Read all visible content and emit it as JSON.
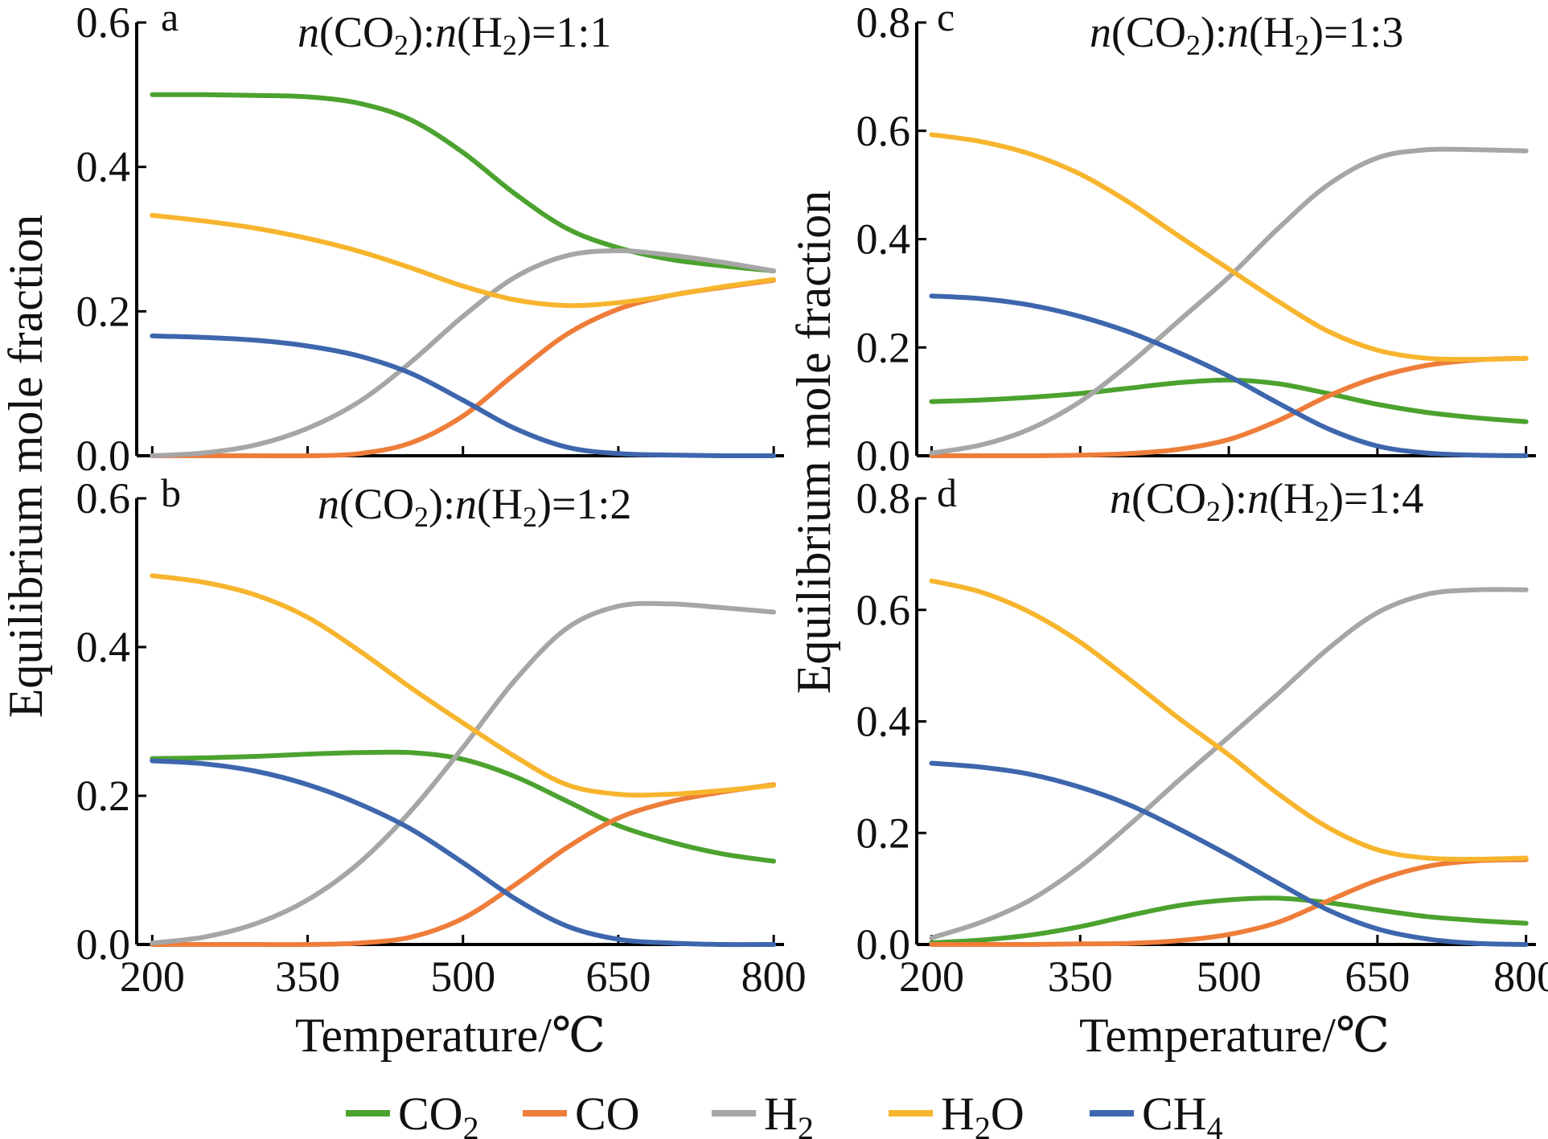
{
  "figure": {
    "ylabel": "Equilibrium mole fraction",
    "xlabel": "Temperature/℃"
  },
  "chart_data": [
    {
      "type": "line",
      "panel": "a",
      "ratio": {
        "a": "n",
        "b": "(CO",
        "c": "2",
        "d": "):",
        "e": "n",
        "f": "(H",
        "g": "2",
        "h": ")=1:1"
      },
      "x": [
        200,
        250,
        300,
        350,
        400,
        450,
        500,
        550,
        600,
        650,
        700,
        750,
        800
      ],
      "xlim": [
        185,
        810
      ],
      "xticks": [
        200,
        350,
        500,
        650,
        800
      ],
      "ylim": [
        0,
        0.6
      ],
      "yticks": [
        "0.0",
        "0.2",
        "0.4",
        "0.6"
      ],
      "series": [
        {
          "key": "CO2",
          "values": [
            0.5,
            0.5,
            0.499,
            0.497,
            0.488,
            0.465,
            0.42,
            0.363,
            0.315,
            0.288,
            0.272,
            0.263,
            0.256
          ]
        },
        {
          "key": "CO",
          "values": [
            0.0,
            0.0,
            0.0,
            0.0,
            0.003,
            0.018,
            0.055,
            0.113,
            0.168,
            0.203,
            0.222,
            0.233,
            0.243
          ]
        },
        {
          "key": "H2",
          "values": [
            0.0,
            0.004,
            0.015,
            0.038,
            0.075,
            0.13,
            0.193,
            0.247,
            0.277,
            0.284,
            0.278,
            0.268,
            0.256
          ]
        },
        {
          "key": "H2O",
          "values": [
            0.333,
            0.325,
            0.315,
            0.301,
            0.283,
            0.26,
            0.235,
            0.216,
            0.208,
            0.212,
            0.222,
            0.234,
            0.244
          ]
        },
        {
          "key": "CH4",
          "values": [
            0.166,
            0.164,
            0.16,
            0.152,
            0.138,
            0.114,
            0.077,
            0.038,
            0.012,
            0.003,
            0.001,
            0.0,
            0.0
          ]
        }
      ]
    },
    {
      "type": "line",
      "panel": "b",
      "ratio": {
        "a": "n",
        "b": "(CO",
        "c": "2",
        "d": "):",
        "e": "n",
        "f": "(H",
        "g": "2",
        "h": ")=1:2"
      },
      "x": [
        200,
        250,
        300,
        350,
        400,
        450,
        500,
        550,
        600,
        650,
        700,
        750,
        800
      ],
      "xlim": [
        185,
        810
      ],
      "xticks": [
        200,
        350,
        500,
        650,
        800
      ],
      "ylim": [
        0,
        0.6
      ],
      "yticks": [
        "0.0",
        "0.2",
        "0.4",
        "0.6"
      ],
      "series": [
        {
          "key": "CO2",
          "values": [
            0.25,
            0.251,
            0.253,
            0.256,
            0.258,
            0.258,
            0.249,
            0.226,
            0.193,
            0.16,
            0.138,
            0.122,
            0.112
          ]
        },
        {
          "key": "CO",
          "values": [
            0.0,
            0.0,
            0.0,
            0.0,
            0.002,
            0.01,
            0.035,
            0.08,
            0.13,
            0.17,
            0.192,
            0.205,
            0.215
          ]
        },
        {
          "key": "H2",
          "values": [
            0.002,
            0.01,
            0.028,
            0.06,
            0.11,
            0.18,
            0.265,
            0.355,
            0.425,
            0.455,
            0.458,
            0.453,
            0.447
          ]
        },
        {
          "key": "H2O",
          "values": [
            0.496,
            0.487,
            0.47,
            0.44,
            0.395,
            0.345,
            0.298,
            0.253,
            0.215,
            0.202,
            0.202,
            0.207,
            0.214
          ]
        },
        {
          "key": "CH4",
          "values": [
            0.247,
            0.243,
            0.233,
            0.215,
            0.189,
            0.155,
            0.11,
            0.062,
            0.025,
            0.007,
            0.002,
            0.0,
            0.0
          ]
        }
      ]
    },
    {
      "type": "line",
      "panel": "c",
      "ratio": {
        "a": "n",
        "b": "(CO",
        "c": "2",
        "d": "):",
        "e": "n",
        "f": "(H",
        "g": "2",
        "h": ")=1:3"
      },
      "x": [
        200,
        250,
        300,
        350,
        400,
        450,
        500,
        550,
        600,
        650,
        700,
        750,
        800
      ],
      "xlim": [
        185,
        810
      ],
      "xticks": [
        200,
        350,
        500,
        650,
        800
      ],
      "ylim": [
        0,
        0.8
      ],
      "yticks": [
        "0.0",
        "0.2",
        "0.4",
        "0.6",
        "0.8"
      ],
      "series": [
        {
          "key": "CO2",
          "values": [
            0.1,
            0.103,
            0.108,
            0.115,
            0.125,
            0.135,
            0.14,
            0.133,
            0.115,
            0.095,
            0.08,
            0.07,
            0.063
          ]
        },
        {
          "key": "CO",
          "values": [
            0.0,
            0.0,
            0.0,
            0.001,
            0.004,
            0.012,
            0.03,
            0.065,
            0.11,
            0.145,
            0.167,
            0.177,
            0.18
          ]
        },
        {
          "key": "H2",
          "values": [
            0.005,
            0.02,
            0.05,
            0.1,
            0.17,
            0.25,
            0.33,
            0.42,
            0.5,
            0.55,
            0.565,
            0.565,
            0.563
          ]
        },
        {
          "key": "H2O",
          "values": [
            0.593,
            0.58,
            0.557,
            0.52,
            0.467,
            0.405,
            0.345,
            0.285,
            0.23,
            0.195,
            0.18,
            0.178,
            0.18
          ]
        },
        {
          "key": "CH4",
          "values": [
            0.295,
            0.29,
            0.278,
            0.257,
            0.228,
            0.19,
            0.147,
            0.097,
            0.05,
            0.018,
            0.005,
            0.001,
            0.0
          ]
        }
      ]
    },
    {
      "type": "line",
      "panel": "d",
      "ratio": {
        "a": "n",
        "b": "(CO",
        "c": "2",
        "d": "):",
        "e": "n",
        "f": "(H",
        "g": "2",
        "h": ")=1:4"
      },
      "x": [
        200,
        250,
        300,
        350,
        400,
        450,
        500,
        550,
        600,
        650,
        700,
        750,
        800
      ],
      "xlim": [
        185,
        810
      ],
      "xticks": [
        200,
        350,
        500,
        650,
        800
      ],
      "ylim": [
        0,
        0.8
      ],
      "yticks": [
        "0.0",
        "0.2",
        "0.4",
        "0.6",
        "0.8"
      ],
      "series": [
        {
          "key": "CO2",
          "values": [
            0.003,
            0.008,
            0.017,
            0.032,
            0.052,
            0.07,
            0.08,
            0.083,
            0.075,
            0.062,
            0.05,
            0.043,
            0.038
          ]
        },
        {
          "key": "CO",
          "values": [
            0.0,
            0.0,
            0.0,
            0.001,
            0.002,
            0.007,
            0.018,
            0.04,
            0.078,
            0.115,
            0.14,
            0.15,
            0.152
          ]
        },
        {
          "key": "H2",
          "values": [
            0.012,
            0.04,
            0.08,
            0.14,
            0.215,
            0.295,
            0.372,
            0.45,
            0.53,
            0.595,
            0.628,
            0.636,
            0.636
          ]
        },
        {
          "key": "H2O",
          "values": [
            0.652,
            0.632,
            0.595,
            0.542,
            0.475,
            0.405,
            0.34,
            0.27,
            0.21,
            0.17,
            0.155,
            0.153,
            0.155
          ]
        },
        {
          "key": "CH4",
          "values": [
            0.325,
            0.318,
            0.305,
            0.282,
            0.25,
            0.207,
            0.16,
            0.11,
            0.062,
            0.028,
            0.01,
            0.002,
            0.0
          ]
        }
      ]
    }
  ],
  "legend": [
    {
      "key": "CO2",
      "label": "CO",
      "sub": "2",
      "tail": "",
      "color": "#4ca22f"
    },
    {
      "key": "CO",
      "label": "CO",
      "sub": "",
      "tail": "",
      "color": "#ee7d3a"
    },
    {
      "key": "H2",
      "label": "H",
      "sub": "2",
      "tail": "",
      "color": "#a6a6a6"
    },
    {
      "key": "H2O",
      "label": "H",
      "sub": "2",
      "tail": "O",
      "color": "#f7b52e"
    },
    {
      "key": "CH4",
      "label": "CH",
      "sub": "4",
      "tail": "",
      "color": "#3d66ad"
    }
  ]
}
